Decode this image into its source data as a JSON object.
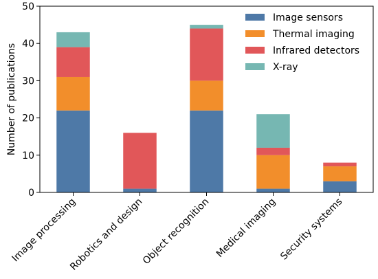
{
  "chart_data": {
    "type": "bar",
    "stacked": true,
    "title": "",
    "xlabel": "",
    "ylabel": "Number of publications",
    "ylim": [
      0,
      50
    ],
    "yticks": [
      0,
      10,
      20,
      30,
      40,
      50
    ],
    "categories": [
      "Image processing",
      "Robotics and design",
      "Object recognition",
      "Medical imaging",
      "Security systems"
    ],
    "series": [
      {
        "name": "Image sensors",
        "color": "#4e79a7",
        "values": [
          22,
          1,
          22,
          1,
          3
        ]
      },
      {
        "name": "Thermal imaging",
        "color": "#f28e2b",
        "values": [
          9,
          0,
          8,
          9,
          4
        ]
      },
      {
        "name": "Infrared detectors",
        "color": "#e15759",
        "values": [
          8,
          15,
          14,
          2,
          1
        ]
      },
      {
        "name": "X-ray",
        "color": "#76b7b2",
        "values": [
          4,
          0,
          1,
          9,
          0
        ]
      }
    ],
    "legend_position": "top-right",
    "grid": false
  }
}
